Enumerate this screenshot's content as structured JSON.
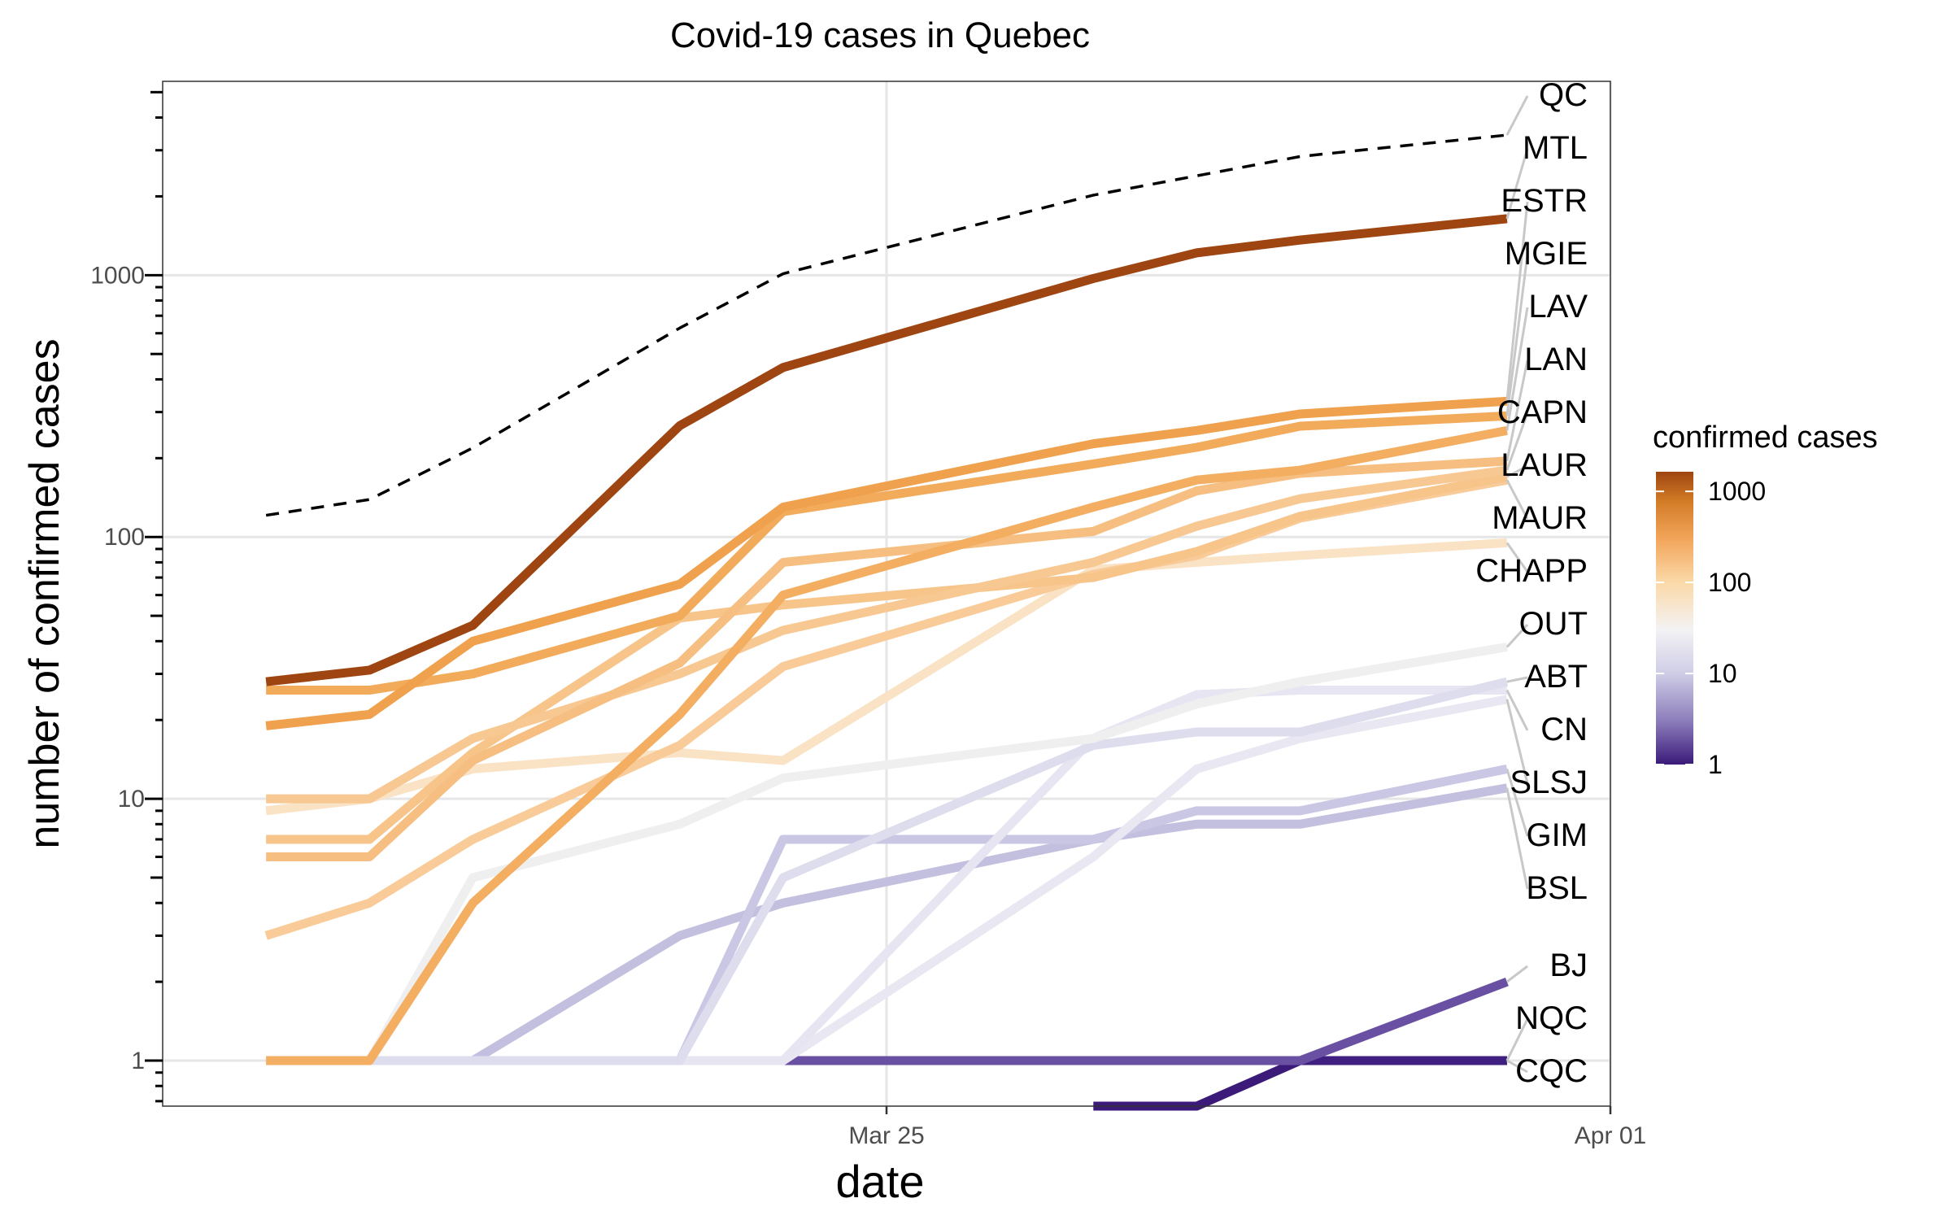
{
  "chart_data": {
    "type": "line",
    "title": "Covid-19 cases in Quebec",
    "xlabel": "date",
    "ylabel": "number of confirmed cases",
    "y_scale": "log10",
    "ylim": [
      0.67,
      5500
    ],
    "xlim": [
      "2020-03-18",
      "2020-04-01"
    ],
    "x_ticks": [
      {
        "date": "2020-03-25",
        "label": "Mar 25"
      },
      {
        "date": "2020-04-01",
        "label": "Apr 01"
      }
    ],
    "y_ticks": [
      {
        "value": 1,
        "label": "1"
      },
      {
        "value": 10,
        "label": "10"
      },
      {
        "value": 100,
        "label": "100"
      },
      {
        "value": 1000,
        "label": "1000"
      }
    ],
    "grid": true,
    "dates": [
      "2020-03-19",
      "2020-03-20",
      "2020-03-21",
      "2020-03-22",
      "2020-03-23",
      "2020-03-24",
      "2020-03-25",
      "2020-03-26",
      "2020-03-27",
      "2020-03-28",
      "2020-03-29",
      "2020-03-30",
      "2020-03-31"
    ],
    "series": [
      {
        "name": "QC",
        "color": "#000000",
        "dashed": true,
        "values": [
          121,
          139,
          219,
          null,
          628,
          1013,
          null,
          null,
          2021,
          null,
          2840,
          null,
          3430
        ]
      },
      {
        "name": "MTL",
        "color": "#9e4511",
        "values": [
          28,
          31,
          46,
          null,
          266,
          444,
          null,
          null,
          971,
          1217,
          1362,
          null,
          1643
        ]
      },
      {
        "name": "ESTR",
        "color": "#f0a14e",
        "values": [
          19,
          21,
          40,
          null,
          66,
          130,
          null,
          null,
          227,
          255,
          295,
          null,
          330
        ]
      },
      {
        "name": "MGIE",
        "color": "#f2aa5b",
        "values": [
          26,
          26,
          30,
          null,
          50,
          125,
          null,
          null,
          190,
          220,
          265,
          null,
          290
        ]
      },
      {
        "name": "LAV",
        "color": "#f3ae62",
        "values": [
          1,
          1,
          4,
          null,
          21,
          60,
          null,
          null,
          130,
          165,
          180,
          null,
          255
        ]
      },
      {
        "name": "LAN",
        "color": "#f6bf81",
        "values": [
          6,
          6,
          14,
          null,
          33,
          80,
          null,
          null,
          105,
          150,
          175,
          null,
          195
        ]
      },
      {
        "name": "CAPN",
        "color": "#f7c891",
        "values": [
          10,
          10,
          17,
          null,
          30,
          44,
          null,
          null,
          80,
          110,
          140,
          null,
          180
        ]
      },
      {
        "name": "LAUR",
        "color": "#f7c48a",
        "values": [
          7,
          7,
          15,
          null,
          49,
          55,
          null,
          null,
          70,
          88,
          120,
          null,
          170
        ]
      },
      {
        "name": "MAUR",
        "color": "#f8cb98",
        "values": [
          3,
          4,
          7,
          null,
          16,
          32,
          null,
          null,
          72,
          85,
          118,
          null,
          165
        ]
      },
      {
        "name": "CHAPP",
        "color": "#fae2c5",
        "values": [
          9,
          10,
          13,
          null,
          15,
          14,
          null,
          null,
          75,
          80,
          85,
          null,
          95
        ]
      },
      {
        "name": "OUT",
        "color": "#efefef",
        "values": [
          1,
          1,
          5,
          null,
          8,
          12,
          null,
          null,
          17,
          23,
          28,
          null,
          38
        ]
      },
      {
        "name": "ABT",
        "color": "#dedded",
        "values": [
          1,
          1,
          1,
          null,
          1,
          5,
          null,
          null,
          16,
          18,
          18,
          null,
          28
        ]
      },
      {
        "name": "CN",
        "color": "#e6e5f1",
        "values": [
          1,
          1,
          1,
          null,
          1,
          1,
          null,
          null,
          17,
          25,
          26,
          null,
          26
        ]
      },
      {
        "name": "SLSJ",
        "color": "#e8e7f2",
        "values": [
          1,
          1,
          1,
          null,
          1,
          1,
          null,
          null,
          6,
          13,
          17,
          null,
          24
        ]
      },
      {
        "name": "GIM",
        "color": "#c9c7e3",
        "values": [
          1,
          1,
          1,
          null,
          1,
          7,
          null,
          null,
          7,
          9,
          9,
          null,
          13
        ]
      },
      {
        "name": "BSL",
        "color": "#c3c0df",
        "values": [
          1,
          1,
          1,
          null,
          3,
          4,
          null,
          null,
          7,
          8,
          8,
          null,
          11
        ]
      },
      {
        "name": "BJ",
        "color": "#6a50a2",
        "values": [
          1,
          1,
          1,
          null,
          1,
          1,
          null,
          null,
          1,
          1,
          1,
          null,
          2
        ]
      },
      {
        "name": "NQC",
        "color": "#3f1f80",
        "values": [
          1,
          1,
          1,
          null,
          1,
          1,
          null,
          null,
          1,
          1,
          1,
          null,
          1
        ]
      },
      {
        "name": "CQC",
        "color": "#3b1a7a",
        "values": [
          null,
          null,
          null,
          null,
          null,
          null,
          null,
          null,
          0.67,
          0.67,
          1,
          null,
          1
        ]
      }
    ],
    "label_order": [
      "QC",
      "MTL",
      "ESTR",
      "MGIE",
      "LAV",
      "LAN",
      "CAPN",
      "LAUR",
      "MAUR",
      "CHAPP",
      "OUT",
      "ABT",
      "CN",
      "SLSJ",
      "GIM",
      "BSL",
      "BJ",
      "NQC",
      "CQC"
    ],
    "legend": {
      "title": "confirmed cases",
      "placement": "right",
      "type": "colorbar",
      "ticks": [
        {
          "value": 1000,
          "label": "1000"
        },
        {
          "value": 100,
          "label": "100"
        },
        {
          "value": 10,
          "label": "10"
        },
        {
          "value": 1,
          "label": "1"
        }
      ],
      "range": [
        1,
        1643
      ],
      "stops": [
        {
          "value": 1,
          "color": "#3b1a7a"
        },
        {
          "value": 3,
          "color": "#8c7dbb"
        },
        {
          "value": 10,
          "color": "#cfcde6"
        },
        {
          "value": 30,
          "color": "#f3f2f4"
        },
        {
          "value": 100,
          "color": "#fbd9a8"
        },
        {
          "value": 300,
          "color": "#f2a55a"
        },
        {
          "value": 800,
          "color": "#d17a25"
        },
        {
          "value": 1643,
          "color": "#9e4511"
        }
      ]
    }
  }
}
